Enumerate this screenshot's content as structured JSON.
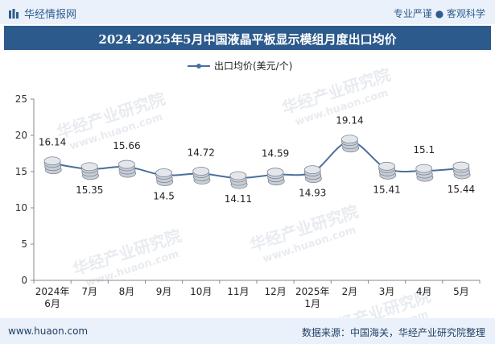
{
  "header": {
    "brand": "华经情报网",
    "tagline": "专业严谨 ● 客观科学"
  },
  "title": "2024-2025年5月中国液晶平板显示模组月度出口均价",
  "legend": {
    "label": "出口均价(美元/个)"
  },
  "footer": {
    "site": "www.huaon.com",
    "source": "数据来源：中国海关，华经产业研究院整理"
  },
  "colors": {
    "line": "#4a6f9f",
    "title_bg": "#2c5a8c",
    "bar_bg": "#eaf1fa"
  },
  "chart_data": {
    "type": "line",
    "title": "2024-2025年5月中国液晶平板显示模组月度出口均价",
    "categories": [
      "2024年\n6月",
      "7月",
      "8月",
      "9月",
      "10月",
      "11月",
      "12月",
      "2025年\n1月",
      "2月",
      "3月",
      "4月",
      "5月"
    ],
    "series": [
      {
        "name": "出口均价(美元/个)",
        "values": [
          16.14,
          15.35,
          15.66,
          14.5,
          14.72,
          14.11,
          14.59,
          14.93,
          19.14,
          15.41,
          15.1,
          15.44
        ]
      }
    ],
    "label_positions": [
      "above",
      "below",
      "above",
      "below",
      "above",
      "below",
      "above",
      "below",
      "above",
      "below",
      "above",
      "below"
    ],
    "ylim": [
      0,
      25
    ],
    "yticks": [
      0,
      5,
      10,
      15,
      20,
      25
    ],
    "xlabel": "",
    "ylabel": "",
    "grid": false,
    "legend": "top-center"
  }
}
